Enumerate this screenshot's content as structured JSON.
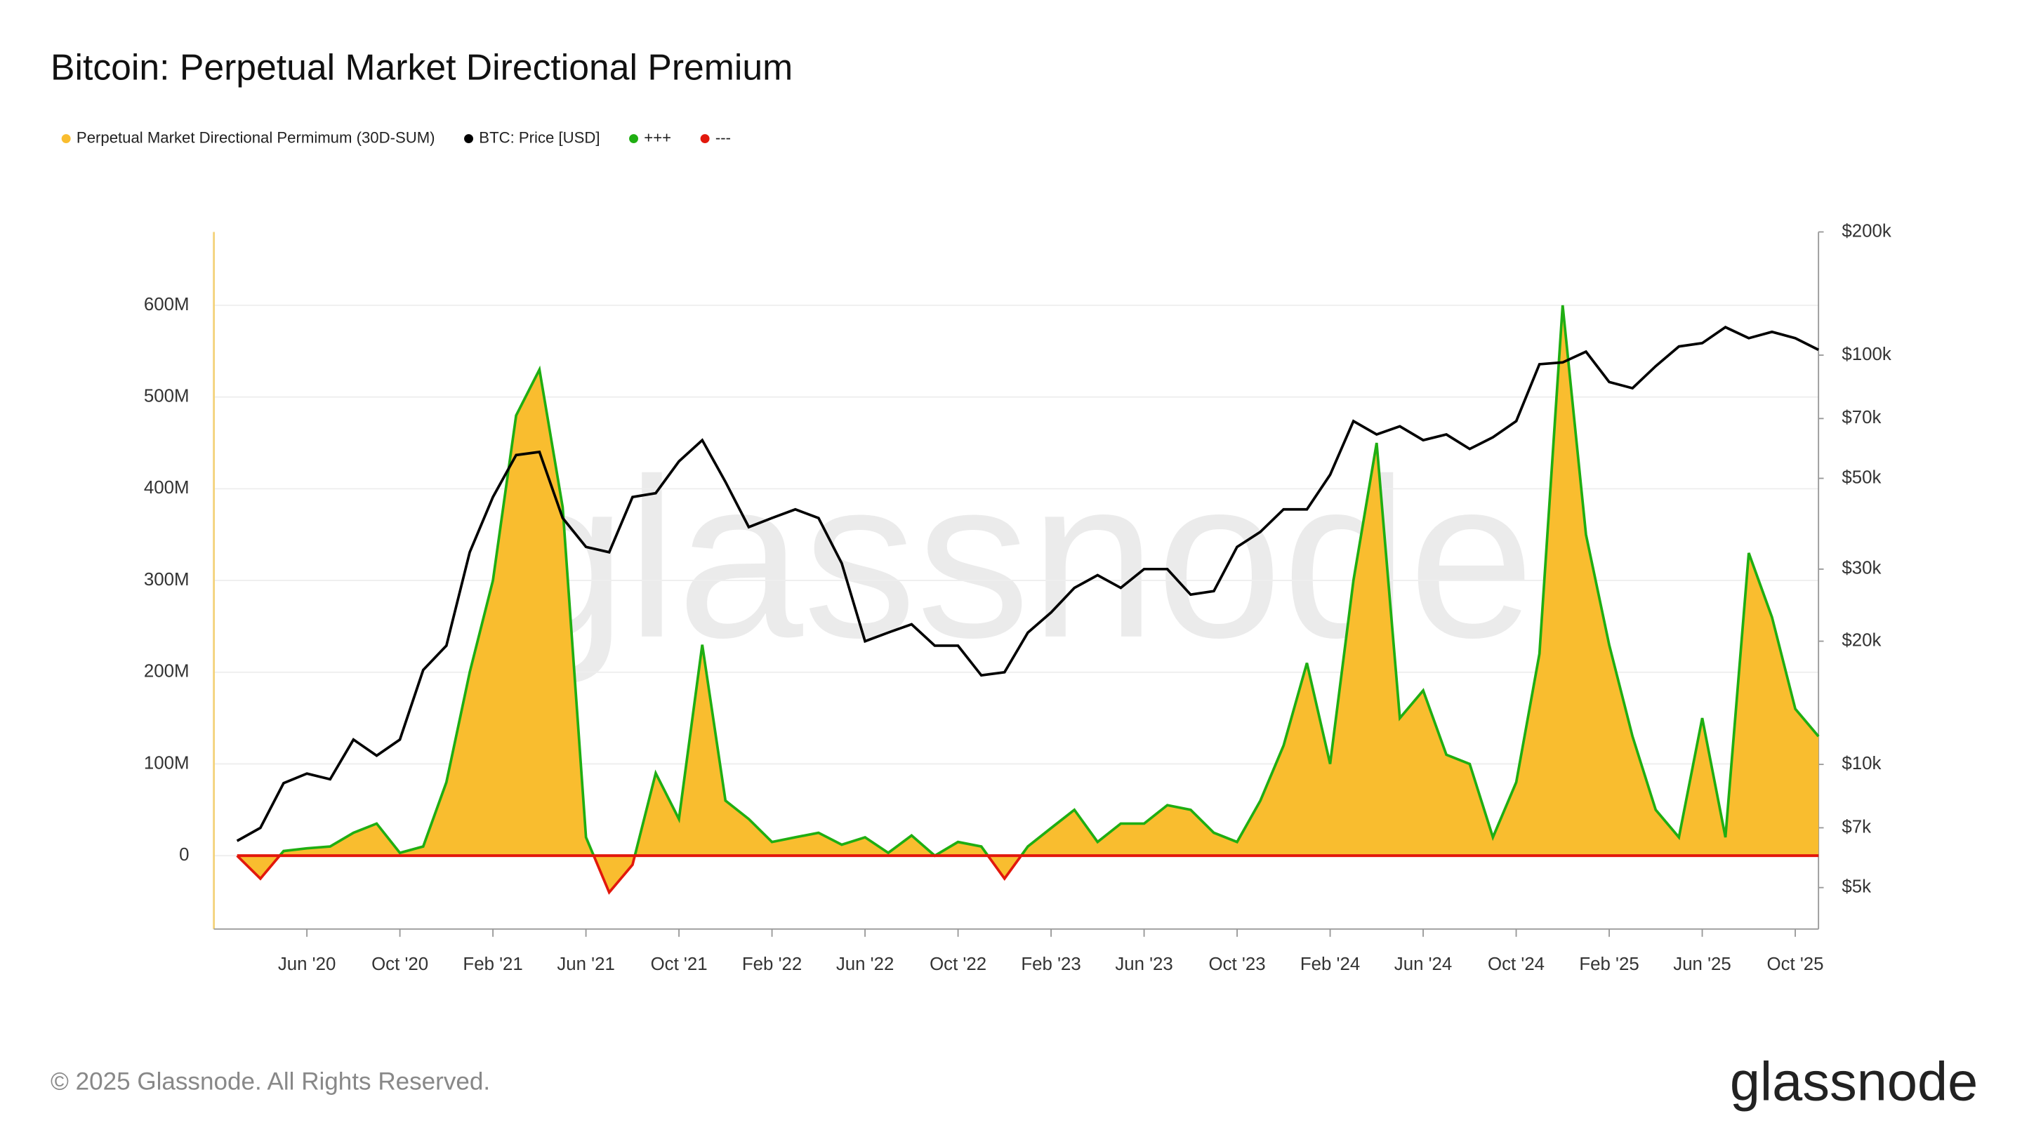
{
  "chart_data": {
    "type": "area",
    "title": "Bitcoin: Perpetual Market Directional Premium",
    "watermark": "glassnode",
    "footer": "© 2025 Glassnode. All Rights Reserved.",
    "logo": "glassnode",
    "x": [
      "2020-03",
      "2020-04",
      "2020-05",
      "2020-06",
      "2020-07",
      "2020-08",
      "2020-09",
      "2020-10",
      "2020-11",
      "2020-12",
      "2021-01",
      "2021-02",
      "2021-03",
      "2021-04",
      "2021-05",
      "2021-06",
      "2021-07",
      "2021-08",
      "2021-09",
      "2021-10",
      "2021-11",
      "2021-12",
      "2022-01",
      "2022-02",
      "2022-03",
      "2022-04",
      "2022-05",
      "2022-06",
      "2022-07",
      "2022-08",
      "2022-09",
      "2022-10",
      "2022-11",
      "2022-12",
      "2023-01",
      "2023-02",
      "2023-03",
      "2023-04",
      "2023-05",
      "2023-06",
      "2023-07",
      "2023-08",
      "2023-09",
      "2023-10",
      "2023-11",
      "2023-12",
      "2024-01",
      "2024-02",
      "2024-03",
      "2024-04",
      "2024-05",
      "2024-06",
      "2024-07",
      "2024-08",
      "2024-09",
      "2024-10",
      "2024-11",
      "2024-12",
      "2025-01",
      "2025-02",
      "2025-03",
      "2025-04",
      "2025-05",
      "2025-06",
      "2025-07",
      "2025-08",
      "2025-09",
      "2025-10",
      "2025-11"
    ],
    "series": [
      {
        "name": "Perpetual Market Directional Permimum (30D-SUM)",
        "color": "#f9bd2f",
        "values": [
          0,
          -25000000,
          5000000,
          8000000,
          10000000,
          25000000,
          35000000,
          3000000,
          10000000,
          80000000,
          200000000,
          300000000,
          480000000,
          530000000,
          380000000,
          20000000,
          -40000000,
          -10000000,
          90000000,
          40000000,
          230000000,
          60000000,
          40000000,
          15000000,
          20000000,
          25000000,
          12000000,
          20000000,
          3000000,
          22000000,
          0,
          15000000,
          10000000,
          -25000000,
          10000000,
          30000000,
          50000000,
          15000000,
          35000000,
          35000000,
          55000000,
          50000000,
          25000000,
          15000000,
          60000000,
          120000000,
          210000000,
          100000000,
          300000000,
          450000000,
          150000000,
          180000000,
          110000000,
          100000000,
          20000000,
          80000000,
          220000000,
          600000000,
          350000000,
          230000000,
          130000000,
          50000000,
          20000000,
          150000000,
          20000000,
          330000000,
          260000000,
          160000000,
          130000000
        ]
      },
      {
        "name": "BTC: Price [USD]",
        "color": "#000000",
        "axis": "y2",
        "values": [
          6500,
          7000,
          9000,
          9500,
          9200,
          11500,
          10500,
          11500,
          17000,
          19500,
          33000,
          45000,
          57000,
          58000,
          40000,
          34000,
          33000,
          45000,
          46000,
          55000,
          62000,
          49000,
          38000,
          40000,
          42000,
          40000,
          31000,
          20000,
          21000,
          22000,
          19500,
          19500,
          16500,
          16800,
          21000,
          23500,
          27000,
          29000,
          27000,
          30000,
          30000,
          26000,
          26500,
          34000,
          37000,
          42000,
          42000,
          51000,
          69000,
          64000,
          67000,
          62000,
          64000,
          59000,
          63000,
          69000,
          95000,
          96000,
          102000,
          86000,
          83000,
          94000,
          105000,
          107000,
          117000,
          110000,
          114000,
          110000,
          103000
        ]
      }
    ],
    "sign_colors": [
      {
        "name": "+++",
        "color": "#1fae12"
      },
      {
        "name": "---",
        "color": "#e2180c"
      }
    ],
    "xlim": [
      "2020-02",
      "2025-11"
    ],
    "xticks": [
      {
        "value": "2020-06",
        "label": "Jun '20"
      },
      {
        "value": "2020-10",
        "label": "Oct '20"
      },
      {
        "value": "2021-02",
        "label": "Feb '21"
      },
      {
        "value": "2021-06",
        "label": "Jun '21"
      },
      {
        "value": "2021-10",
        "label": "Oct '21"
      },
      {
        "value": "2022-02",
        "label": "Feb '22"
      },
      {
        "value": "2022-06",
        "label": "Jun '22"
      },
      {
        "value": "2022-10",
        "label": "Oct '22"
      },
      {
        "value": "2023-02",
        "label": "Feb '23"
      },
      {
        "value": "2023-06",
        "label": "Jun '23"
      },
      {
        "value": "2023-10",
        "label": "Oct '23"
      },
      {
        "value": "2024-02",
        "label": "Feb '24"
      },
      {
        "value": "2024-06",
        "label": "Jun '24"
      },
      {
        "value": "2024-10",
        "label": "Oct '24"
      },
      {
        "value": "2025-02",
        "label": "Feb '25"
      },
      {
        "value": "2025-06",
        "label": "Jun '25"
      },
      {
        "value": "2025-10",
        "label": "Oct '25"
      }
    ],
    "ylim": [
      -80000000,
      680000000
    ],
    "yticks": [
      0,
      {
        "value": 100000000,
        "label": "100M"
      },
      {
        "value": 200000000,
        "label": "200M"
      },
      {
        "value": 300000000,
        "label": "300M"
      },
      {
        "value": 400000000,
        "label": "400M"
      },
      {
        "value": 500000000,
        "label": "500M"
      },
      {
        "value": 600000000,
        "label": "600M"
      }
    ],
    "y2lim": [
      3960,
      200000
    ],
    "y2log": true,
    "y2ticks": [
      {
        "value": 5000,
        "label": "$5k"
      },
      {
        "value": 7000,
        "label": "$7k"
      },
      {
        "value": 10000,
        "label": "$10k"
      },
      {
        "value": 20000,
        "label": "$20k"
      },
      {
        "value": 30000,
        "label": "$30k"
      },
      {
        "value": 50000,
        "label": "$50k"
      },
      {
        "value": 70000,
        "label": "$70k"
      },
      {
        "value": 100000,
        "label": "$100k"
      },
      {
        "value": 200000,
        "label": "$200k"
      }
    ],
    "grid": true
  }
}
